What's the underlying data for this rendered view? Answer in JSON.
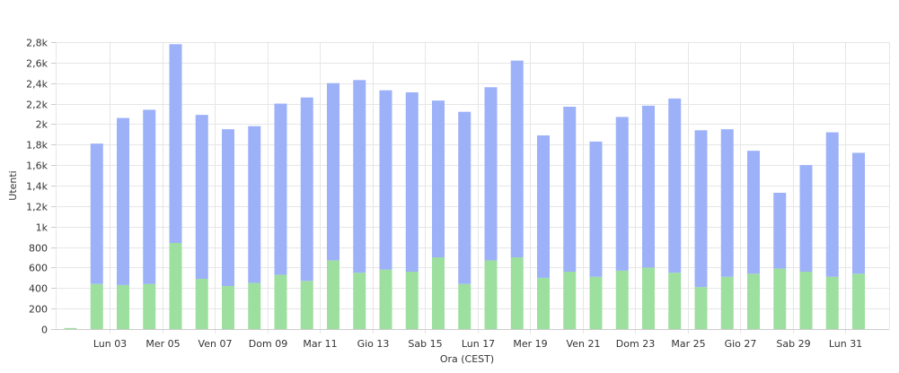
{
  "chart_data": {
    "type": "bar",
    "stacked": true,
    "xlabel": "Ora (CEST)",
    "ylabel": "Utenti",
    "ylim": [
      0,
      2800
    ],
    "yticks": [
      0,
      200,
      400,
      600,
      800,
      1000,
      1200,
      1400,
      1600,
      1800,
      2000,
      2200,
      2400,
      2600,
      2800
    ],
    "ytick_labels": [
      "0",
      "200",
      "400",
      "600",
      "800",
      "1k",
      "1,2k",
      "1,4k",
      "1,6k",
      "1,8k",
      "2k",
      "2,2k",
      "2,4k",
      "2,6k",
      "2,8k"
    ],
    "x_tick_labels": [
      {
        "index": 2,
        "label": "Lun 03"
      },
      {
        "index": 4,
        "label": "Mer 05"
      },
      {
        "index": 6,
        "label": "Ven 07"
      },
      {
        "index": 8,
        "label": "Dom 09"
      },
      {
        "index": 10,
        "label": "Mar 11"
      },
      {
        "index": 12,
        "label": "Gio 13"
      },
      {
        "index": 14,
        "label": "Sab 15"
      },
      {
        "index": 16,
        "label": "Lun 17"
      },
      {
        "index": 18,
        "label": "Mer 19"
      },
      {
        "index": 20,
        "label": "Ven 21"
      },
      {
        "index": 22,
        "label": "Dom 23"
      },
      {
        "index": 24,
        "label": "Mar 25"
      },
      {
        "index": 26,
        "label": "Gio 27"
      },
      {
        "index": 28,
        "label": "Sab 29"
      },
      {
        "index": 30,
        "label": "Lun 31"
      }
    ],
    "grid": true,
    "series": [
      {
        "color": "#9ddf9f",
        "values": [
          10,
          440,
          430,
          440,
          840,
          490,
          420,
          450,
          530,
          470,
          670,
          550,
          580,
          560,
          700,
          440,
          670,
          700,
          500,
          560,
          510,
          570,
          600,
          550,
          410,
          510,
          540,
          590,
          560,
          510,
          540
        ]
      },
      {
        "color": "#9db1f8",
        "values": [
          0,
          1370,
          1630,
          1700,
          1940,
          1600,
          1530,
          1530,
          1670,
          1790,
          1730,
          1880,
          1750,
          1750,
          1530,
          1680,
          1690,
          1920,
          1390,
          1610,
          1320,
          1500,
          1580,
          1700,
          1530,
          1440,
          1200,
          740,
          1040,
          1410,
          1180
        ]
      }
    ]
  }
}
